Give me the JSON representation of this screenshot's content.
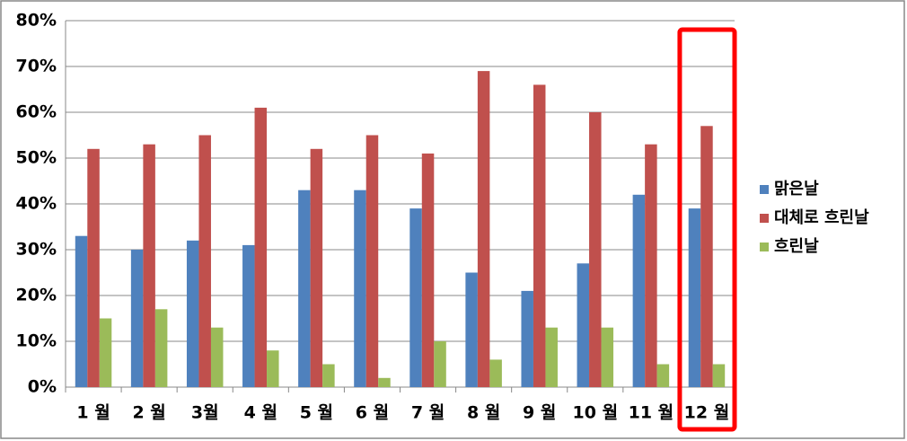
{
  "chart_data": {
    "type": "bar",
    "categories": [
      "1 월",
      "2 월",
      "3월",
      "4 월",
      "5 월",
      "6 월",
      "7 월",
      "8 월",
      "9 월",
      "10 월",
      "11 월",
      "12 월"
    ],
    "series": [
      {
        "name": "맑은날",
        "color": "#4f81bd",
        "values": [
          33,
          30,
          32,
          31,
          43,
          43,
          39,
          25,
          21,
          27,
          42,
          39
        ]
      },
      {
        "name": "대체로 흐린날",
        "color": "#c0504d",
        "values": [
          52,
          53,
          55,
          61,
          52,
          55,
          51,
          69,
          66,
          60,
          53,
          57
        ]
      },
      {
        "name": "흐린날",
        "color": "#9bbb59",
        "values": [
          15,
          17,
          13,
          8,
          5,
          2,
          10,
          6,
          13,
          13,
          5,
          5
        ]
      }
    ],
    "ylim": [
      0,
      80
    ],
    "yticks": [
      {
        "value": 0,
        "label": "0%"
      },
      {
        "value": 10,
        "label": "10%"
      },
      {
        "value": 20,
        "label": "20%"
      },
      {
        "value": 30,
        "label": "30%"
      },
      {
        "value": 40,
        "label": "40%"
      },
      {
        "value": 50,
        "label": "50%"
      },
      {
        "value": 60,
        "label": "60%"
      },
      {
        "value": 70,
        "label": "70%"
      },
      {
        "value": 80,
        "label": "80%"
      }
    ],
    "grid": true,
    "legend": "right"
  }
}
